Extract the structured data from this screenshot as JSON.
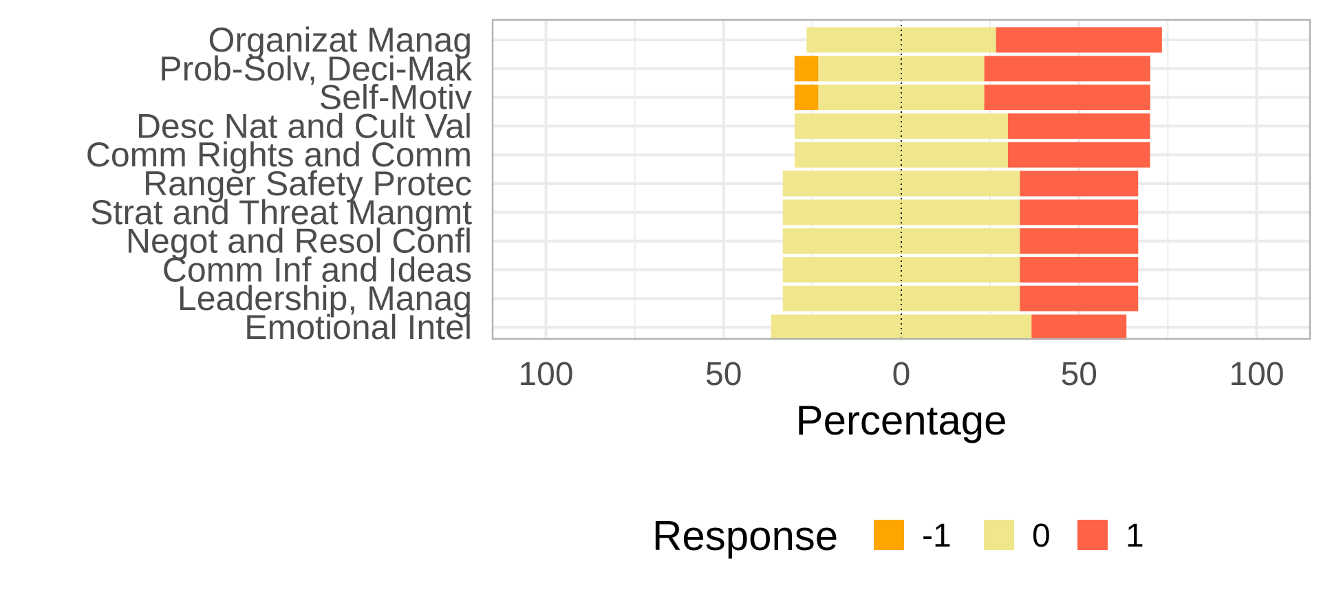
{
  "chart_data": {
    "type": "bar",
    "orientation": "horizontal-diverging",
    "categories": [
      "Organizat Manag",
      "Prob-Solv, Deci-Mak",
      "Self-Motiv",
      "Desc Nat and Cult Val",
      "Comm Rights and Comm",
      "Ranger Safety Protec",
      "Strat and Threat Mangmt",
      "Negot and Resol Confl",
      "Comm Inf and Ideas",
      "Leadership, Manag",
      "Emotional Intel"
    ],
    "series": [
      {
        "name": "-1",
        "color": "#FFA500",
        "values": [
          0,
          6.7,
          6.7,
          0,
          0,
          0,
          0,
          0,
          0,
          0,
          0
        ]
      },
      {
        "name": "0",
        "color": "#F0E68C",
        "values": [
          53.3,
          46.7,
          46.7,
          60,
          60,
          66.7,
          66.7,
          66.7,
          66.7,
          66.7,
          73.3
        ]
      },
      {
        "name": "1",
        "color": "#FF6347",
        "values": [
          46.7,
          46.7,
          46.7,
          40,
          40,
          33.3,
          33.3,
          33.3,
          33.3,
          33.3,
          26.7
        ]
      }
    ],
    "xlabel": "Percentage",
    "xlim": [
      -115,
      115
    ],
    "xticks": [
      -100,
      -50,
      0,
      50,
      100
    ],
    "xtick_labels": [
      "100",
      "50",
      "0",
      "50",
      "100"
    ],
    "grid": true,
    "zero_line": "dotted",
    "legend": {
      "title": "Response",
      "position": "bottom",
      "entries": [
        "-1",
        "0",
        "1"
      ]
    }
  }
}
